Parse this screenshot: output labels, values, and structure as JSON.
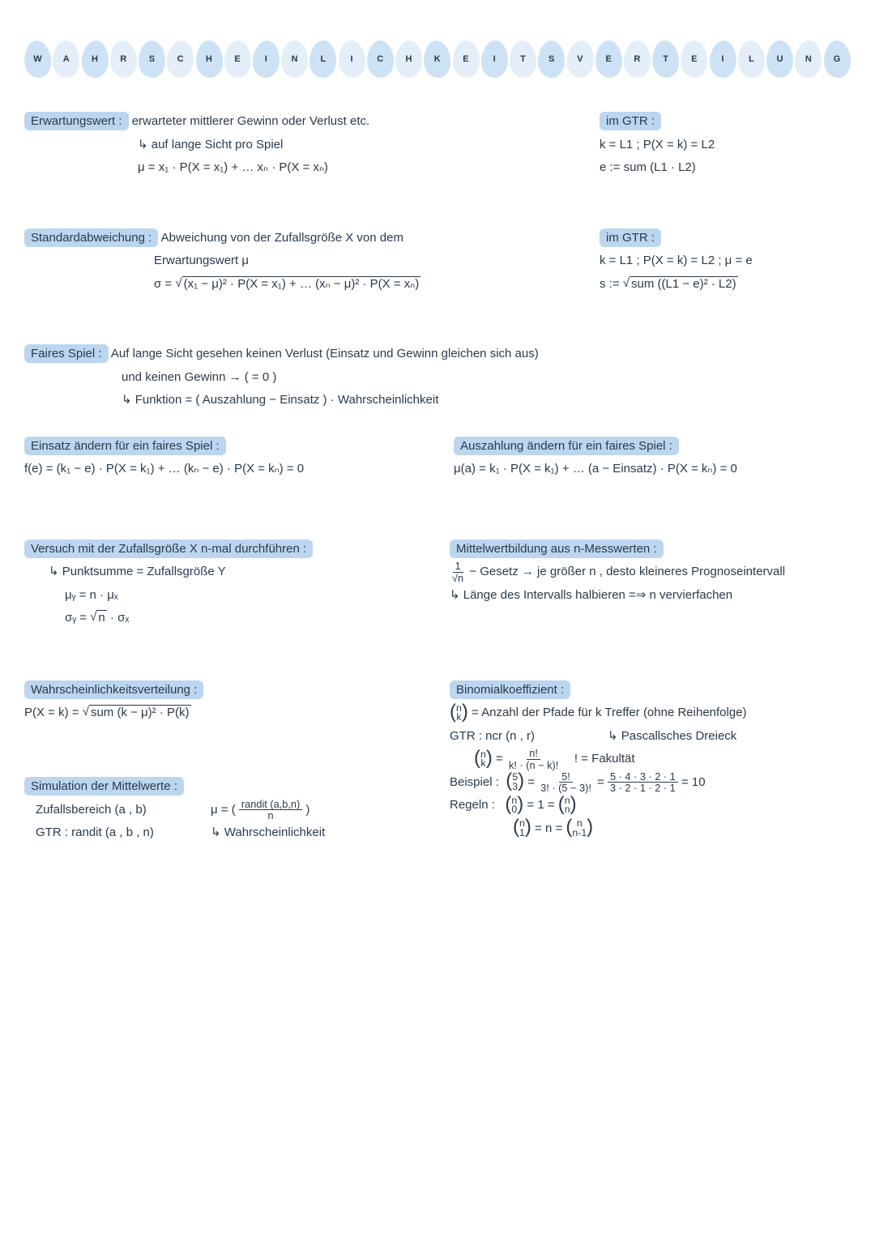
{
  "colors": {
    "background": "#ffffff",
    "text": "#2a3a4a",
    "highlight": "#bcd6ef",
    "blobA": "#c9dff5",
    "blobB": "#e1ecf8"
  },
  "title_letters": [
    "W",
    "A",
    "H",
    "R",
    "S",
    "C",
    "H",
    "E",
    "I",
    "N",
    "L",
    "I",
    "C",
    "H",
    "K",
    "E",
    "I",
    "T",
    "S",
    "V",
    "E",
    "R",
    "T",
    "E",
    "I",
    "L",
    "U",
    "N",
    "G"
  ],
  "erwartung": {
    "label": "Erwartungswert :",
    "def": "erwarteter mittlerer Gewinn oder Verlust etc.",
    "sub1": "auf lange Sicht pro Spiel",
    "formula": "μ = x₁ · P(X = x₁) + … xₙ · P(X = xₙ)",
    "gtr_label": "im GTR :",
    "gtr1": "k = L1 ; P(X = k) = L2",
    "gtr2": "e := sum (L1 · L2)"
  },
  "stdabw": {
    "label": "Standardabweichung :",
    "def": "Abweichung von der Zufallsgröße X von dem",
    "def2": "Erwartungswert μ",
    "sigma_prefix": "σ = ",
    "sigma_rad": "(x₁ − μ)² · P(X = x₁) + … (xₙ − μ)² · P(X = xₙ)",
    "gtr_label": "im GTR :",
    "gtr1": "k = L1 ; P(X = k) = L2 ; μ = e",
    "s_prefix": "s := ",
    "s_rad": "sum ((L1 − e)² · L2)"
  },
  "fair": {
    "label": "Faires Spiel :",
    "l1": "Auf lange Sicht gesehen keinen Verlust (Einsatz und Gewinn gleichen sich aus)",
    "l2": "und keinen Gewinn → ( = 0 )",
    "l3": "Funktion = ( Auszahlung − Einsatz ) · Wahrscheinlichkeit",
    "einsatz_label": "Einsatz ändern für ein faires Spiel :",
    "einsatz_formula": "f(e) = (k₁ − e) · P(X = k₁) + … (kₙ − e) · P(X = kₙ) = 0",
    "auszahl_label": "Auszahlung ändern für ein faires Spiel :",
    "auszahl_formula": "μ(a) =  k₁ · P(X = k₁) + … (a − Einsatz) · P(X = kₙ) = 0"
  },
  "nmal": {
    "label": "Versuch mit der Zufallsgröße X n-mal durchführen :",
    "l1": "Punktsumme = Zufallsgröße Y",
    "mu": "μᵧ = n · μₓ",
    "sigma_prefix": "σᵧ = ",
    "sigma_rad": "n",
    "sigma_suffix": " · σₓ"
  },
  "mittelwert": {
    "label": "Mittelwertbildung aus n-Messwerten :",
    "law_prefix": "",
    "law_rad": "n",
    "law_after": " − Gesetz → je größer n , desto kleineres Prognoseintervall",
    "l2": "Länge des Intervalls halbieren =⇒ n vervierfachen"
  },
  "wvert": {
    "label": "Wahrscheinlichkeitsverteilung :",
    "formula_prefix": "P(X = k) = ",
    "formula_rad": "sum (k − μ)² · P(k)"
  },
  "binom": {
    "label": "Binomialkoeffizient :",
    "def_after": " = Anzahl der Pfade für k Treffer (ohne Reihenfolge)",
    "gtr": "GTR : ncr (n , r)",
    "pascal": "Pascallsches Dreieck",
    "frac_num": "n!",
    "frac_den": "k! · (n − k)!",
    "fak": "! = Fakultät",
    "beispiel_label": "Beispiel :",
    "bsp_frac1_num": "5!",
    "bsp_frac1_den": "3! · (5 − 3)!",
    "bsp_frac2_num": "5 · 4 · 3 · 2 · 1",
    "bsp_frac2_den": "3 · 2 · 1 · 2 · 1",
    "bsp_result": " = 10",
    "regeln_label": "Regeln :",
    "r1_mid": " = 1 = ",
    "r2_mid": " = n = "
  },
  "sim": {
    "label": "Simulation der Mittelwerte :",
    "l1": "Zufallsbereich (a , b)",
    "l2": "GTR : randit (a , b , n)",
    "mu_prefix": "μ = ",
    "mu_num": "randit (a,b,n)",
    "mu_den": "n",
    "sub": "Wahrscheinlichkeit"
  }
}
